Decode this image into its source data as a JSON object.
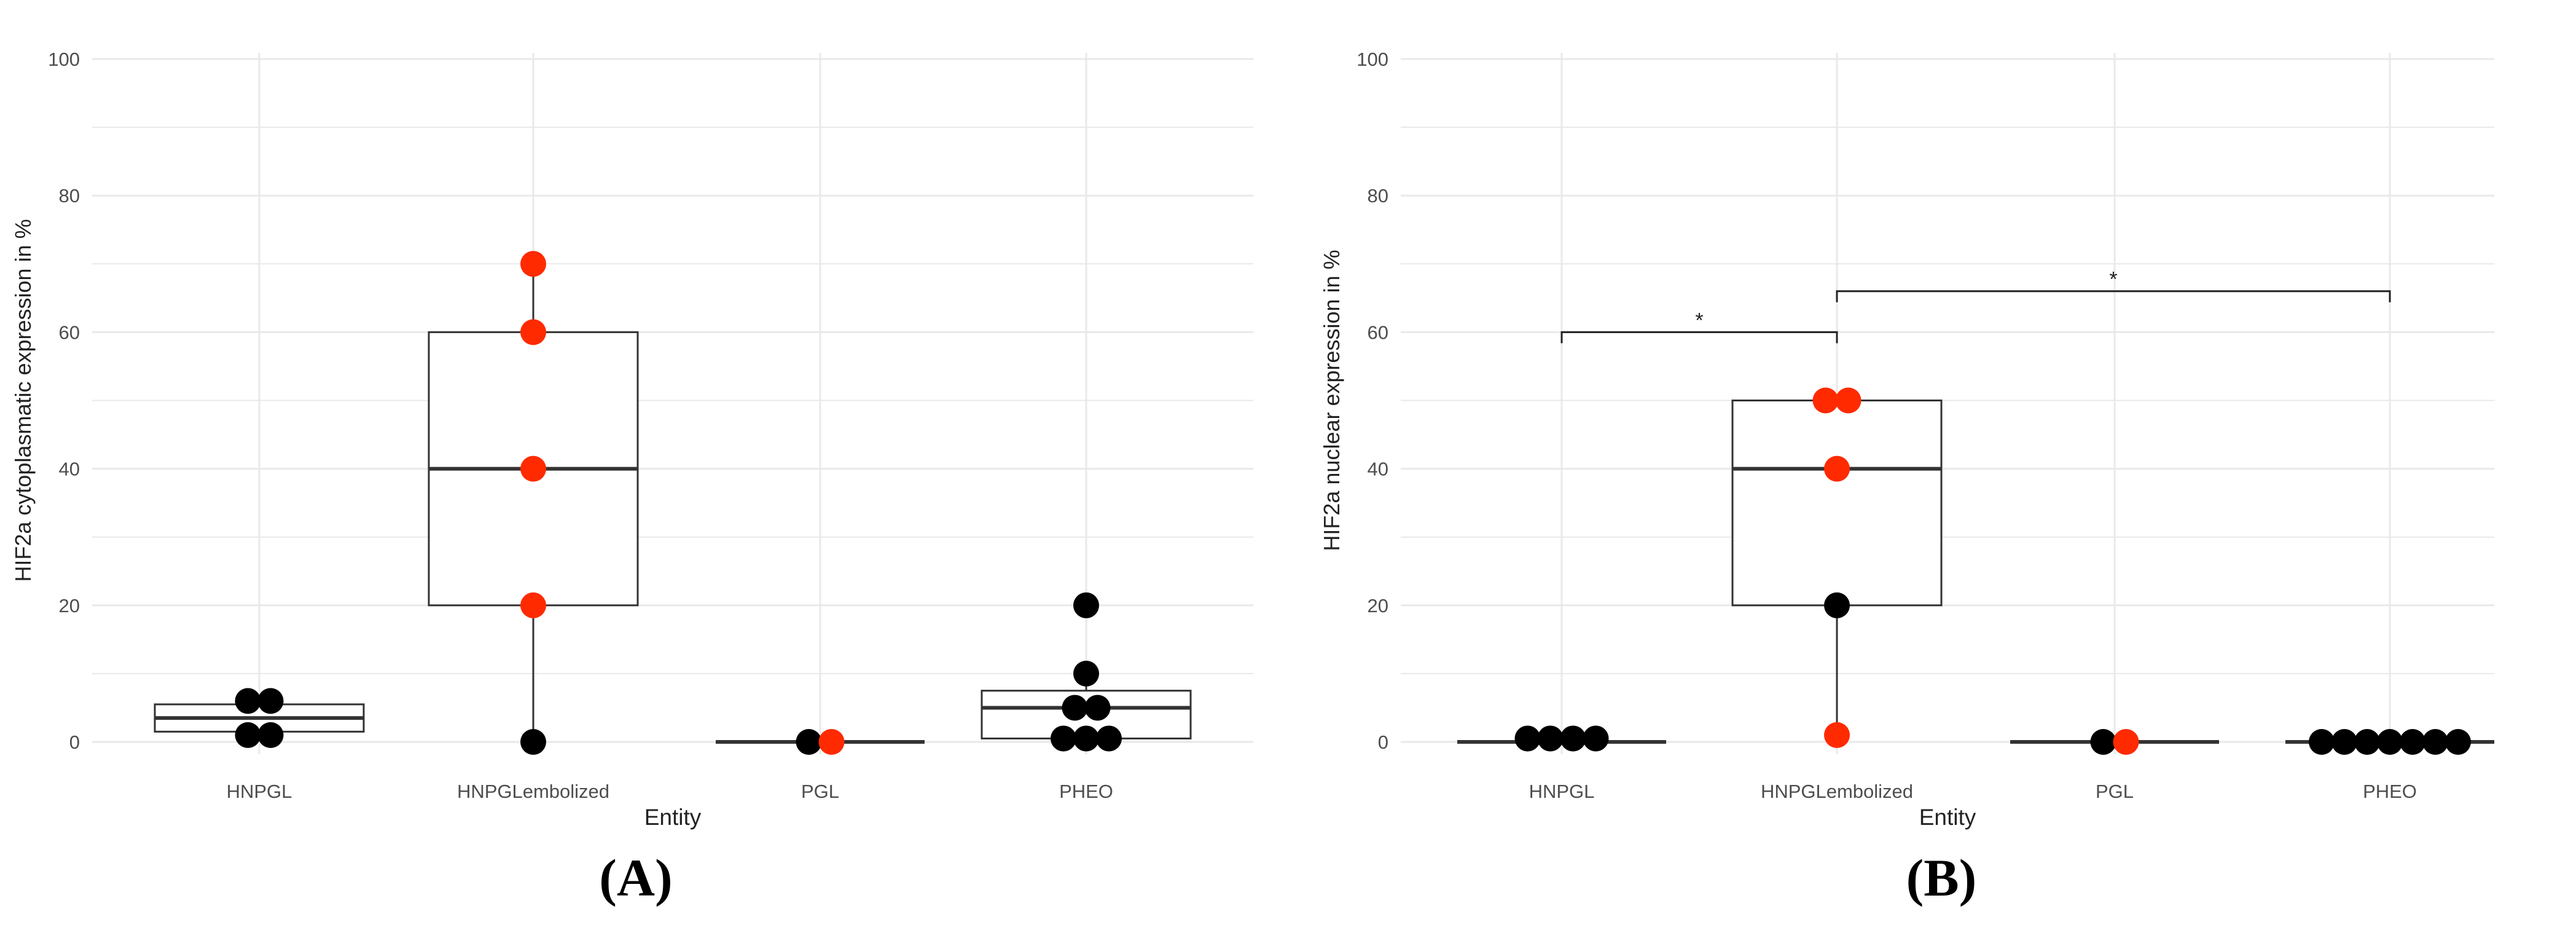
{
  "panels": {
    "a_label": "(A)",
    "b_label": "(B)"
  },
  "chart_data": [
    {
      "type": "box",
      "xlabel": "Entity",
      "ylabel": "HIF2a cytoplasmatic expression in %",
      "categories": [
        "HNPGL",
        "HNPGLembolized",
        "PGL",
        "PHEO"
      ],
      "y_ticks": [
        0,
        20,
        40,
        60,
        80,
        100
      ],
      "ylim": [
        0,
        100
      ],
      "grid": true,
      "boxes": [
        {
          "category": "HNPGL",
          "q1": 1.5,
          "median": 3.5,
          "q3": 5.5,
          "whisker_low": 1,
          "whisker_high": 6
        },
        {
          "category": "HNPGLembolized",
          "q1": 20,
          "median": 40,
          "q3": 60,
          "whisker_low": 0,
          "whisker_high": 70
        },
        {
          "category": "PGL",
          "q1": 0,
          "median": 0,
          "q3": 0,
          "whisker_low": 0,
          "whisker_high": 0
        },
        {
          "category": "PHEO",
          "q1": 0.5,
          "median": 5,
          "q3": 7.5,
          "whisker_low": 0,
          "whisker_high": 10
        }
      ],
      "points": [
        {
          "category": "HNPGL",
          "y": 6,
          "color": "#000000"
        },
        {
          "category": "HNPGL",
          "y": 6,
          "color": "#000000"
        },
        {
          "category": "HNPGL",
          "y": 1,
          "color": "#000000"
        },
        {
          "category": "HNPGL",
          "y": 1,
          "color": "#000000"
        },
        {
          "category": "HNPGLembolized",
          "y": 70,
          "color": "#ff2a00"
        },
        {
          "category": "HNPGLembolized",
          "y": 60,
          "color": "#ff2a00"
        },
        {
          "category": "HNPGLembolized",
          "y": 40,
          "color": "#ff2a00"
        },
        {
          "category": "HNPGLembolized",
          "y": 20,
          "color": "#ff2a00"
        },
        {
          "category": "HNPGLembolized",
          "y": 0,
          "color": "#000000"
        },
        {
          "category": "PGL",
          "y": 0,
          "color": "#000000"
        },
        {
          "category": "PGL",
          "y": 0,
          "color": "#ff2a00"
        },
        {
          "category": "PHEO",
          "y": 20,
          "color": "#000000"
        },
        {
          "category": "PHEO",
          "y": 10,
          "color": "#000000"
        },
        {
          "category": "PHEO",
          "y": 5,
          "color": "#000000"
        },
        {
          "category": "PHEO",
          "y": 5,
          "color": "#000000"
        },
        {
          "category": "PHEO",
          "y": 0.5,
          "color": "#000000"
        },
        {
          "category": "PHEO",
          "y": 0.5,
          "color": "#000000"
        },
        {
          "category": "PHEO",
          "y": 0.5,
          "color": "#000000"
        }
      ],
      "significance": []
    },
    {
      "type": "box",
      "xlabel": "Entity",
      "ylabel": "HIF2a nuclear expression in %",
      "categories": [
        "HNPGL",
        "HNPGLembolized",
        "PGL",
        "PHEO"
      ],
      "y_ticks": [
        0,
        20,
        40,
        60,
        80,
        100
      ],
      "ylim": [
        0,
        100
      ],
      "grid": true,
      "boxes": [
        {
          "category": "HNPGL",
          "q1": 0,
          "median": 0,
          "q3": 0,
          "whisker_low": 0,
          "whisker_high": 0
        },
        {
          "category": "HNPGLembolized",
          "q1": 20,
          "median": 40,
          "q3": 50,
          "whisker_low": 1,
          "whisker_high": 50
        },
        {
          "category": "PGL",
          "q1": 0,
          "median": 0,
          "q3": 0,
          "whisker_low": 0,
          "whisker_high": 0
        },
        {
          "category": "PHEO",
          "q1": 0,
          "median": 0,
          "q3": 0,
          "whisker_low": 0,
          "whisker_high": 0
        }
      ],
      "points": [
        {
          "category": "HNPGL",
          "y": 0.5,
          "color": "#000000"
        },
        {
          "category": "HNPGL",
          "y": 0.5,
          "color": "#000000"
        },
        {
          "category": "HNPGL",
          "y": 0.5,
          "color": "#000000"
        },
        {
          "category": "HNPGL",
          "y": 0.5,
          "color": "#000000"
        },
        {
          "category": "HNPGLembolized",
          "y": 50,
          "color": "#ff2a00"
        },
        {
          "category": "HNPGLembolized",
          "y": 50,
          "color": "#ff2a00"
        },
        {
          "category": "HNPGLembolized",
          "y": 40,
          "color": "#ff2a00"
        },
        {
          "category": "HNPGLembolized",
          "y": 20,
          "color": "#000000"
        },
        {
          "category": "HNPGLembolized",
          "y": 1,
          "color": "#ff2a00"
        },
        {
          "category": "PGL",
          "y": 0,
          "color": "#000000"
        },
        {
          "category": "PGL",
          "y": 0,
          "color": "#ff2a00"
        },
        {
          "category": "PHEO",
          "y": 0,
          "color": "#000000"
        },
        {
          "category": "PHEO",
          "y": 0,
          "color": "#000000"
        },
        {
          "category": "PHEO",
          "y": 0,
          "color": "#000000"
        },
        {
          "category": "PHEO",
          "y": 0,
          "color": "#000000"
        },
        {
          "category": "PHEO",
          "y": 0,
          "color": "#000000"
        },
        {
          "category": "PHEO",
          "y": 0,
          "color": "#000000"
        },
        {
          "category": "PHEO",
          "y": 0,
          "color": "#000000"
        }
      ],
      "significance": [
        {
          "from": "HNPGL",
          "to": "HNPGLembolized",
          "y": 60,
          "label": "*"
        },
        {
          "from": "HNPGLembolized",
          "to": "PHEO",
          "y": 66,
          "label": "*"
        }
      ]
    }
  ]
}
